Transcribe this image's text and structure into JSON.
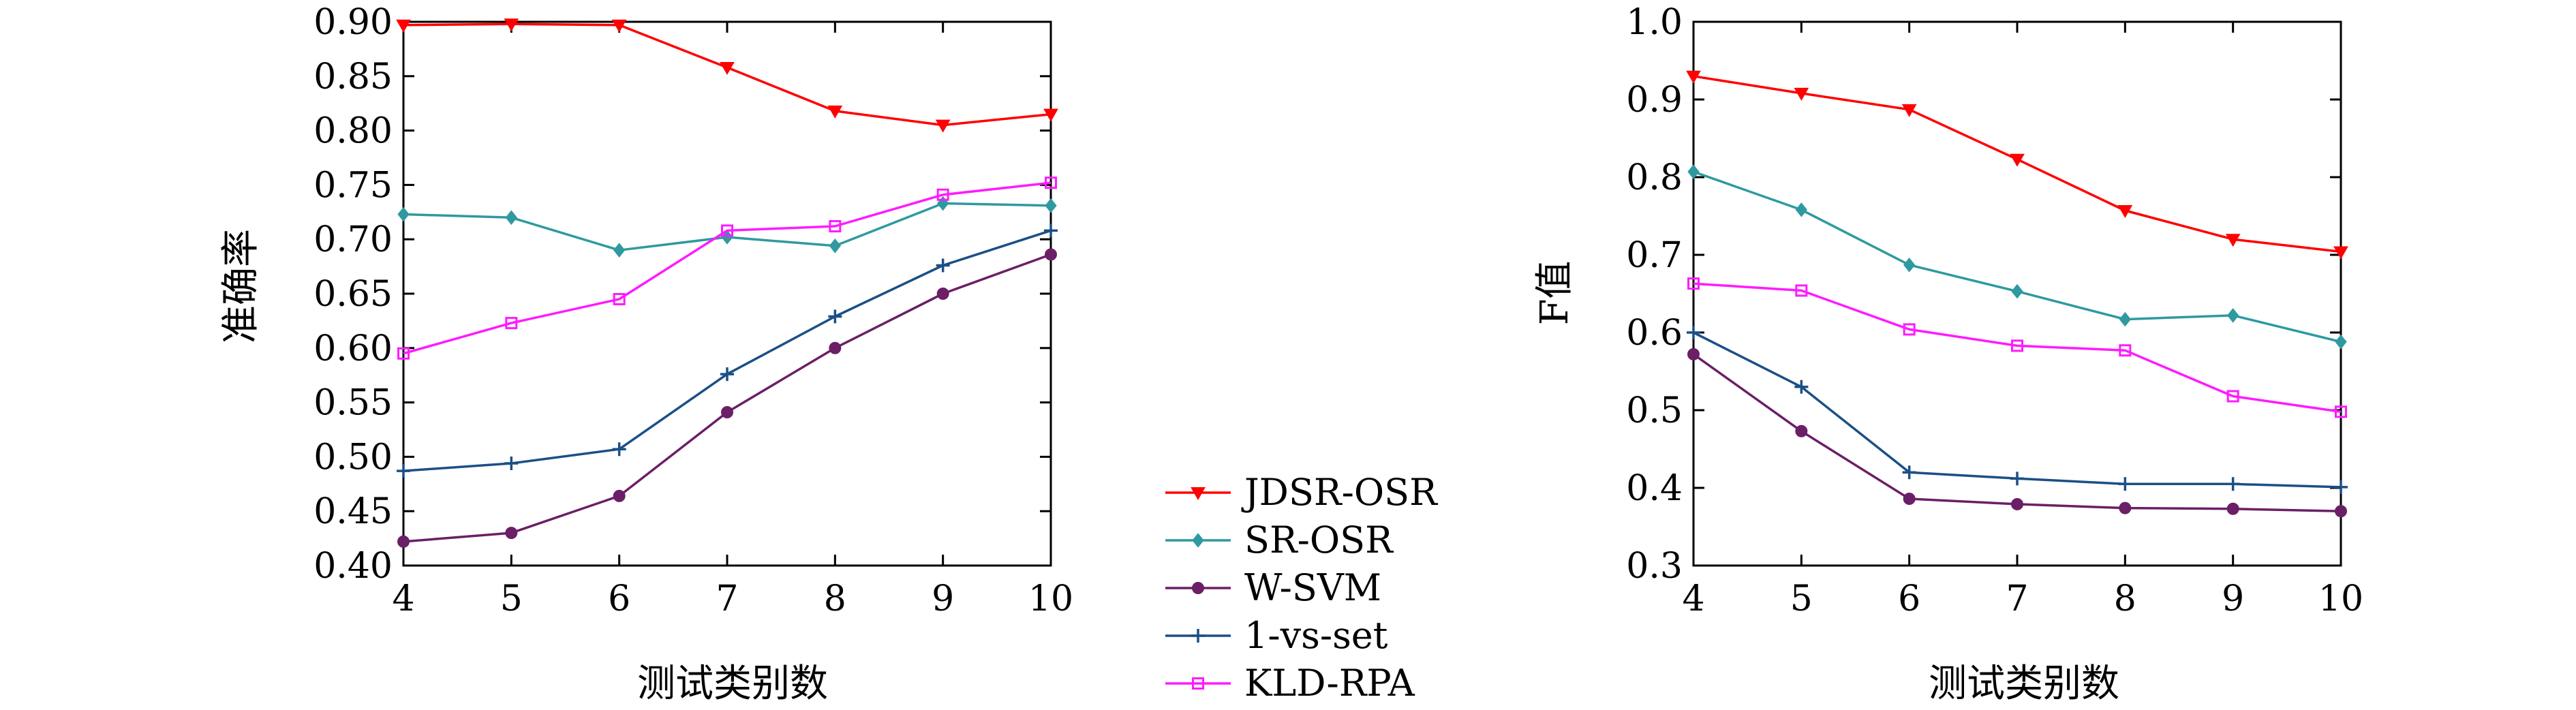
{
  "figure": {
    "colors": {
      "JDSR-OSR": "#ff0000",
      "SR-OSR": "#2e9aa0",
      "W-SVM": "#6b1f66",
      "1-vs-set": "#1b4f86",
      "KLD-RPA": "#ff1aff"
    }
  },
  "legend": {
    "entries": [
      {
        "label": "JDSR-OSR",
        "marker": "triangle-down"
      },
      {
        "label": "SR-OSR",
        "marker": "diamond"
      },
      {
        "label": "W-SVM",
        "marker": "circle"
      },
      {
        "label": "1-vs-set",
        "marker": "plus"
      },
      {
        "label": "KLD-RPA",
        "marker": "square"
      }
    ]
  },
  "chart_data": [
    {
      "type": "line",
      "xlabel": "测试类别数",
      "ylabel": "准确率",
      "x": [
        4,
        5,
        6,
        7,
        8,
        9,
        10
      ],
      "xticks": [
        "4",
        "5",
        "6",
        "7",
        "8",
        "9",
        "10"
      ],
      "yticks": [
        "0.40",
        "0.45",
        "0.50",
        "0.55",
        "0.60",
        "0.65",
        "0.70",
        "0.75",
        "0.80",
        "0.85",
        "0.90"
      ],
      "xlim": [
        4,
        10
      ],
      "ylim": [
        0.4,
        0.9
      ],
      "series": [
        {
          "name": "JDSR-OSR",
          "marker": "triangle-down",
          "values": [
            0.897,
            0.898,
            0.897,
            0.858,
            0.818,
            0.805,
            0.815
          ]
        },
        {
          "name": "SR-OSR",
          "marker": "diamond",
          "values": [
            0.723,
            0.72,
            0.69,
            0.702,
            0.694,
            0.733,
            0.731
          ]
        },
        {
          "name": "W-SVM",
          "marker": "circle",
          "values": [
            0.422,
            0.43,
            0.464,
            0.541,
            0.6,
            0.65,
            0.686
          ]
        },
        {
          "name": "1-vs-set",
          "marker": "plus",
          "values": [
            0.487,
            0.494,
            0.507,
            0.576,
            0.629,
            0.676,
            0.708
          ]
        },
        {
          "name": "KLD-RPA",
          "marker": "square",
          "values": [
            0.595,
            0.623,
            0.645,
            0.708,
            0.712,
            0.741,
            0.752
          ]
        }
      ]
    },
    {
      "type": "line",
      "xlabel": "测试类别数",
      "ylabel": "F值",
      "x": [
        4,
        5,
        6,
        7,
        8,
        9,
        10
      ],
      "xticks": [
        "4",
        "5",
        "6",
        "7",
        "8",
        "9",
        "10"
      ],
      "yticks": [
        "0.3",
        "0.4",
        "0.5",
        "0.6",
        "0.7",
        "0.8",
        "0.9",
        "1.0"
      ],
      "xlim": [
        4,
        10
      ],
      "ylim": [
        0.3,
        1.0
      ],
      "series": [
        {
          "name": "JDSR-OSR",
          "marker": "triangle-down",
          "values": [
            0.93,
            0.908,
            0.887,
            0.823,
            0.757,
            0.72,
            0.704
          ]
        },
        {
          "name": "SR-OSR",
          "marker": "diamond",
          "values": [
            0.807,
            0.758,
            0.687,
            0.653,
            0.617,
            0.622,
            0.588
          ]
        },
        {
          "name": "W-SVM",
          "marker": "circle",
          "values": [
            0.572,
            0.473,
            0.386,
            0.379,
            0.374,
            0.373,
            0.37
          ]
        },
        {
          "name": "1-vs-set",
          "marker": "plus",
          "values": [
            0.6,
            0.53,
            0.42,
            0.412,
            0.405,
            0.405,
            0.401
          ]
        },
        {
          "name": "KLD-RPA",
          "marker": "square",
          "values": [
            0.663,
            0.654,
            0.604,
            0.583,
            0.577,
            0.518,
            0.498
          ]
        }
      ]
    }
  ]
}
